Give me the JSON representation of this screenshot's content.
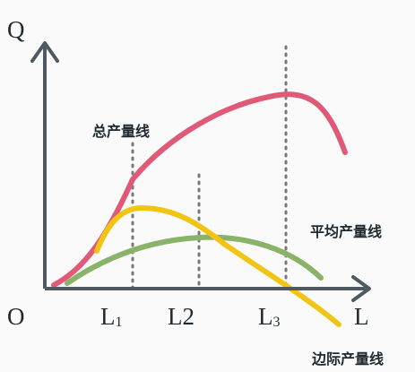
{
  "axes": {
    "y_label": "Q",
    "x_label": "L",
    "origin_label": "O"
  },
  "ticks": [
    {
      "main": "L",
      "sub": "1"
    },
    {
      "main": "L2",
      "sub": ""
    },
    {
      "main": "L",
      "sub": "3"
    }
  ],
  "curves": {
    "total": {
      "label": "总产量线",
      "color": "#e05a78"
    },
    "average": {
      "label": "平均产量线",
      "color": "#8ab36a"
    },
    "marginal": {
      "label": "边际产量线",
      "color": "#f2c416"
    }
  },
  "axis_color": "#4e5a60",
  "guide_color": "#7a7a7a"
}
